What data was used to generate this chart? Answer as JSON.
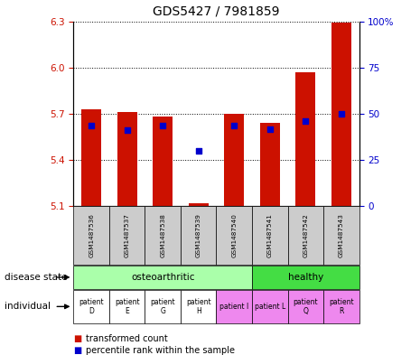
{
  "title": "GDS5427 / 7981859",
  "samples": [
    "GSM1487536",
    "GSM1487537",
    "GSM1487538",
    "GSM1487539",
    "GSM1487540",
    "GSM1487541",
    "GSM1487542",
    "GSM1487543"
  ],
  "bar_values": [
    5.73,
    5.71,
    5.68,
    5.12,
    5.7,
    5.64,
    5.97,
    6.29
  ],
  "blue_dot_values": [
    5.62,
    5.59,
    5.62,
    5.46,
    5.62,
    5.6,
    5.65,
    5.7
  ],
  "ylim": [
    5.1,
    6.3
  ],
  "yticks": [
    5.1,
    5.4,
    5.7,
    6.0,
    6.3
  ],
  "right_yticks": [
    0,
    25,
    50,
    75,
    100
  ],
  "right_ylim": [
    0,
    100
  ],
  "bar_color": "#cc1100",
  "dot_color": "#0000cc",
  "disease_state_labels": [
    "osteoarthritic",
    "healthy"
  ],
  "disease_state_colors": [
    "#aaffaa",
    "#44dd44"
  ],
  "individual_labels": [
    "patient\nD",
    "patient\nE",
    "patient\nG",
    "patient\nH",
    "patient I",
    "patient L",
    "patient\nQ",
    "patient\nR"
  ],
  "individual_colors": [
    "#ffffff",
    "#ffffff",
    "#ffffff",
    "#ffffff",
    "#ee88ee",
    "#ee88ee",
    "#ee88ee",
    "#ee88ee"
  ],
  "legend_red": "transformed count",
  "legend_blue": "percentile rank within the sample",
  "left_tick_color": "#cc1100",
  "right_tick_color": "#0000cc",
  "background_label": "#cccccc"
}
